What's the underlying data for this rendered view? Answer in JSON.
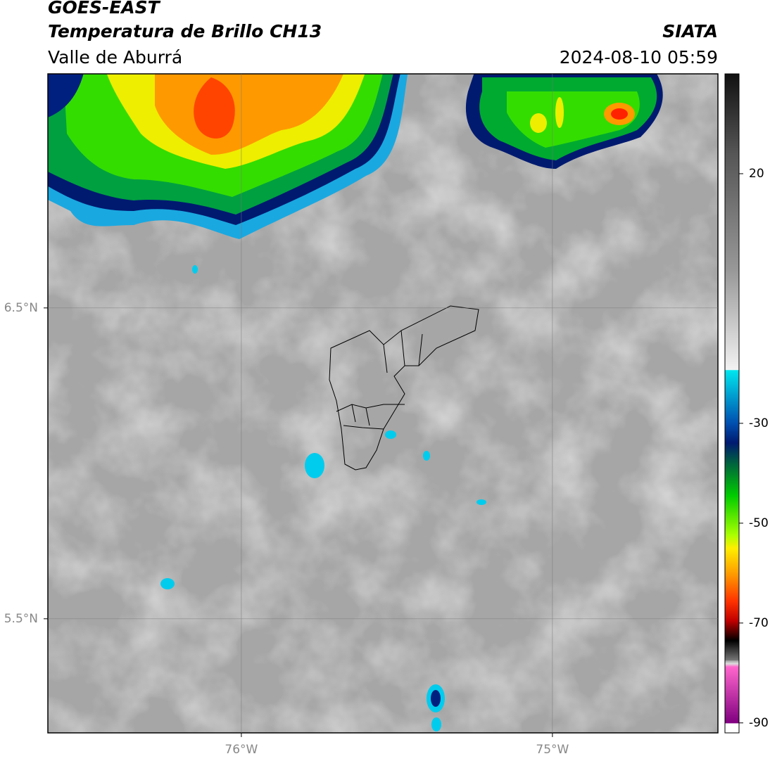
{
  "header": {
    "title": "GOES-EAST",
    "subtitle": "Temperatura de Brillo CH13",
    "region": "Valle de Aburrá",
    "source": "SIATA",
    "timestamp": "2024-08-10 05:59"
  },
  "map": {
    "xlim": [
      -76.622,
      -74.468
    ],
    "ylim": [
      5.133,
      7.253
    ],
    "xticks": [
      {
        "value": -76,
        "label": "76°W"
      },
      {
        "value": -75,
        "label": "75°W"
      }
    ],
    "yticks": [
      {
        "value": 6.5,
        "label": "6.5°N"
      },
      {
        "value": 5.5,
        "label": "5.5°N"
      }
    ],
    "grid": true
  },
  "colorbar": {
    "lim": [
      -92,
      40
    ],
    "ticks": [
      20,
      -30,
      -50,
      -70,
      -90
    ]
  }
}
